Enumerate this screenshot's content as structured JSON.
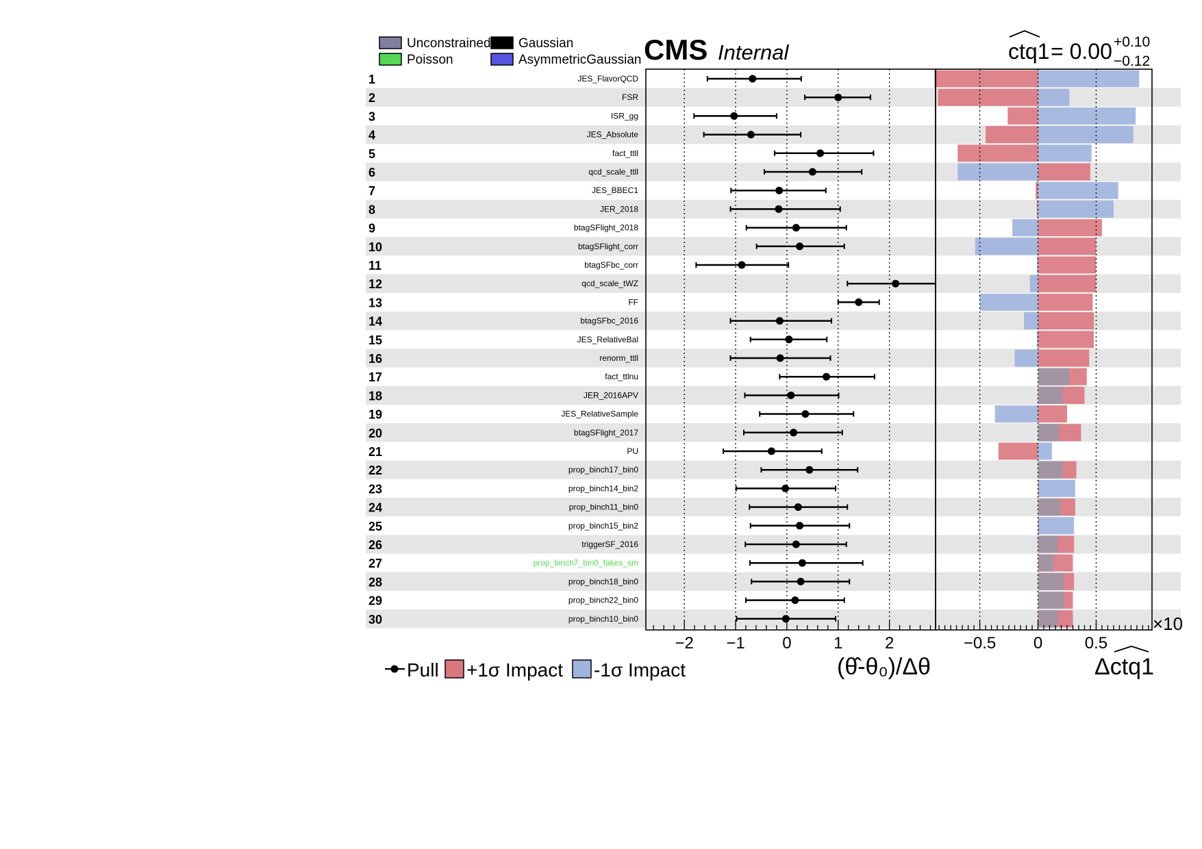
{
  "legend_types": [
    {
      "label": "Unconstrained",
      "color": "#7f7f9f"
    },
    {
      "label": "Gaussian",
      "color": "#000000"
    },
    {
      "label": "Poisson",
      "color": "#55d655"
    },
    {
      "label": "AsymmetricGaussian",
      "color": "#5555dd"
    }
  ],
  "header": {
    "experiment": "CMS",
    "status": "Internal",
    "poi_name": "ctq1",
    "poi_value": "= 0.00",
    "poi_err_up": "+0.10",
    "poi_err_down": "−0.12"
  },
  "bottom_legend": {
    "pull": "Pull",
    "plus_impact": "+1σ Impact",
    "minus_impact": "-1σ Impact"
  },
  "colors": {
    "plus_impact": "#d9777f",
    "minus_impact": "#9fb3dd",
    "overlap": "#a3919f",
    "band_gray": "#e5e5e5",
    "gaussian_label": "#000000",
    "poisson_label": "#55d655"
  },
  "chart_data": [
    {
      "type": "scatter",
      "name": "pulls",
      "xlabel": "(θ̂-θ₀)/Δθ",
      "xlim": [
        -2.75,
        2.9
      ],
      "xticks": [
        -2,
        -1,
        0,
        1,
        2
      ],
      "xtick_labels": [
        "−2",
        "−1",
        "0",
        "1",
        "2"
      ],
      "grid": "dotted vertical lines at -2, -1, 0, 1, 2",
      "ranks": [
        1,
        2,
        3,
        4,
        5,
        6,
        7,
        8,
        9,
        10,
        11,
        12,
        13,
        14,
        15,
        16,
        17,
        18,
        19,
        20,
        21,
        22,
        23,
        24,
        25,
        26,
        27,
        28,
        29,
        30
      ],
      "parameters": [
        "JES_FlavorQCD",
        "FSR",
        "ISR_gg",
        "JES_Absolute",
        "fact_ttll",
        "qcd_scale_ttll",
        "JES_BBEC1",
        "JER_2018",
        "btagSFlight_2018",
        "btagSFlight_corr",
        "btagSFbc_corr",
        "qcd_scale_tWZ",
        "FF",
        "btagSFbc_2016",
        "JES_RelativeBal",
        "renorm_ttll",
        "fact_ttlnu",
        "JER_2016APV",
        "JES_RelativeSample",
        "btagSFlight_2017",
        "PU",
        "prop_binch17_bin0",
        "prop_binch14_bin2",
        "prop_binch11_bin0",
        "prop_binch15_bin2",
        "triggerSF_2016",
        "prop_binch7_bin0_fakes_sm",
        "prop_binch18_bin0",
        "prop_binch22_bin0",
        "prop_binch10_bin0"
      ],
      "constraint_types": [
        "Gaussian",
        "Gaussian",
        "Gaussian",
        "Gaussian",
        "Gaussian",
        "Gaussian",
        "Gaussian",
        "Gaussian",
        "Gaussian",
        "Gaussian",
        "Gaussian",
        "Gaussian",
        "Gaussian",
        "Gaussian",
        "Gaussian",
        "Gaussian",
        "Gaussian",
        "Gaussian",
        "Gaussian",
        "Gaussian",
        "Gaussian",
        "Gaussian",
        "Gaussian",
        "Gaussian",
        "Gaussian",
        "Gaussian",
        "Poisson",
        "Gaussian",
        "Gaussian",
        "Gaussian"
      ],
      "pull": [
        -0.67,
        1.0,
        -1.03,
        -0.7,
        0.65,
        0.5,
        -0.15,
        -0.16,
        0.18,
        0.25,
        -0.88,
        2.12,
        1.4,
        -0.14,
        0.04,
        -0.13,
        0.77,
        0.08,
        0.36,
        0.13,
        -0.3,
        0.44,
        -0.03,
        0.22,
        0.25,
        0.18,
        0.3,
        0.27,
        0.16,
        -0.02
      ],
      "err_lo": [
        -1.55,
        0.35,
        -1.81,
        -1.62,
        -0.24,
        -0.44,
        -1.09,
        -1.1,
        -0.79,
        -0.59,
        -1.77,
        1.18,
        1.0,
        -1.1,
        -0.71,
        -1.1,
        -0.14,
        -0.82,
        -0.53,
        -0.84,
        -1.24,
        -0.5,
        -0.99,
        -0.73,
        -0.71,
        -0.81,
        -0.72,
        -0.69,
        -0.8,
        -0.98
      ],
      "err_hi": [
        0.28,
        1.63,
        -0.2,
        0.27,
        1.69,
        1.46,
        0.76,
        1.04,
        1.16,
        1.12,
        0.03,
        2.9,
        1.8,
        0.87,
        0.78,
        0.85,
        1.71,
        1.01,
        1.3,
        1.08,
        0.68,
        1.38,
        0.95,
        1.18,
        1.22,
        1.16,
        1.48,
        1.22,
        1.12,
        0.95
      ]
    },
    {
      "type": "bar",
      "orientation": "horizontal",
      "name": "impacts",
      "xlabel": "Δctq1",
      "xlim": [
        -0.88,
        0.98
      ],
      "xticks": [
        -0.5,
        0,
        0.5
      ],
      "xtick_labels": [
        "−0.5",
        "0",
        "0.5"
      ],
      "axis_multiplier_label": "×10",
      "grid": "dotted vertical lines at -0.5, 0, 0.5",
      "series": [
        {
          "name": "+1σ Impact",
          "values": [
            -0.89,
            -0.86,
            -0.26,
            -0.45,
            -0.69,
            0.45,
            -0.02,
            -0.01,
            0.55,
            0.5,
            0.5,
            0.5,
            0.47,
            0.48,
            0.48,
            0.44,
            0.42,
            0.4,
            0.25,
            0.37,
            -0.34,
            0.33,
            0.01,
            0.32,
            0.01,
            0.31,
            0.3,
            0.31,
            0.3,
            0.3
          ]
        },
        {
          "name": "-1σ Impact",
          "values": [
            0.87,
            0.27,
            0.84,
            0.82,
            0.46,
            -0.69,
            0.69,
            0.65,
            -0.22,
            -0.54,
            -0.01,
            -0.07,
            -0.5,
            -0.12,
            -0.01,
            -0.2,
            0.27,
            0.21,
            -0.37,
            0.18,
            0.12,
            0.21,
            0.32,
            0.19,
            0.31,
            0.17,
            0.13,
            0.22,
            0.22,
            0.17
          ]
        }
      ]
    }
  ]
}
